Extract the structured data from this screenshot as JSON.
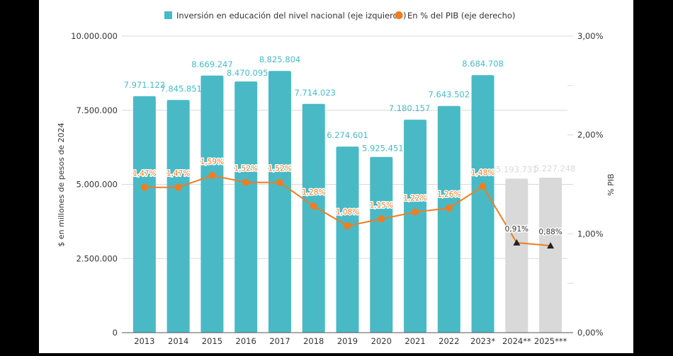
{
  "chart_data": {
    "type": "bar",
    "categories": [
      "2013",
      "2014",
      "2015",
      "2016",
      "2017",
      "2018",
      "2019",
      "2020",
      "2021",
      "2022",
      "2023*",
      "2024**",
      "2025***"
    ],
    "series": [
      {
        "name": "Inversión en educación del nivel nacional (eje izquierdo)",
        "type": "bar",
        "axis": "left",
        "values": [
          7971122,
          7845851,
          8669247,
          8470095,
          8825804,
          7714023,
          6274601,
          5925451,
          7180157,
          7643502,
          8684708,
          5193731,
          5227248
        ],
        "labels": [
          "7.971.122",
          "7.845.851",
          "8.669.247",
          "8.470.095",
          "8.825.804",
          "7.714.023",
          "6.274.601",
          "5.925.451",
          "7.180.157",
          "7.643.502",
          "8.684.708",
          "5.193.731",
          "5.227.248"
        ],
        "projected": [
          false,
          false,
          false,
          false,
          false,
          false,
          false,
          false,
          false,
          false,
          false,
          true,
          true
        ]
      },
      {
        "name": "En % del PIB (eje derecho)",
        "type": "line",
        "axis": "right",
        "values": [
          1.47,
          1.47,
          1.59,
          1.52,
          1.52,
          1.28,
          1.08,
          1.15,
          1.22,
          1.26,
          1.48,
          0.91,
          0.88
        ],
        "labels": [
          "1,47%",
          "1,47%",
          "1,59%",
          "1,52%",
          "1,52%",
          "1,28%",
          "1,08%",
          "1,15%",
          "1,22%",
          "1,26%",
          "1,48%",
          "0,91%",
          "0,88%"
        ],
        "projected": [
          false,
          false,
          false,
          false,
          false,
          false,
          false,
          false,
          false,
          false,
          false,
          true,
          true
        ]
      }
    ],
    "title": "",
    "xlabel": "",
    "ylabel": "$ en millones de pesos de 2024",
    "y2label": "% PIB",
    "ylim": [
      0,
      10000000
    ],
    "y2lim": [
      0,
      3
    ],
    "yticks": [
      0,
      2500000,
      5000000,
      7500000,
      10000000
    ],
    "ytick_labels": [
      "0",
      "2.500.000",
      "5.000.000",
      "7.500.000",
      "10.000.000"
    ],
    "y2ticks": [
      0,
      1,
      2,
      3
    ],
    "y2tick_labels": [
      "0,00%",
      "1,00%",
      "2,00%",
      "3,00%"
    ],
    "grid": true,
    "legend": "top-center",
    "colors": {
      "bar": "#4ab9c6",
      "bar_projected": "#d9d9d9",
      "bar_label": "#4ab9c6",
      "bar_label_projected": "#d9d9d9",
      "line": "#ef7d22",
      "marker": "#ef7d22",
      "marker_projected": "#222222",
      "grid": "#d9d9d9",
      "axis_text": "#333333"
    }
  }
}
